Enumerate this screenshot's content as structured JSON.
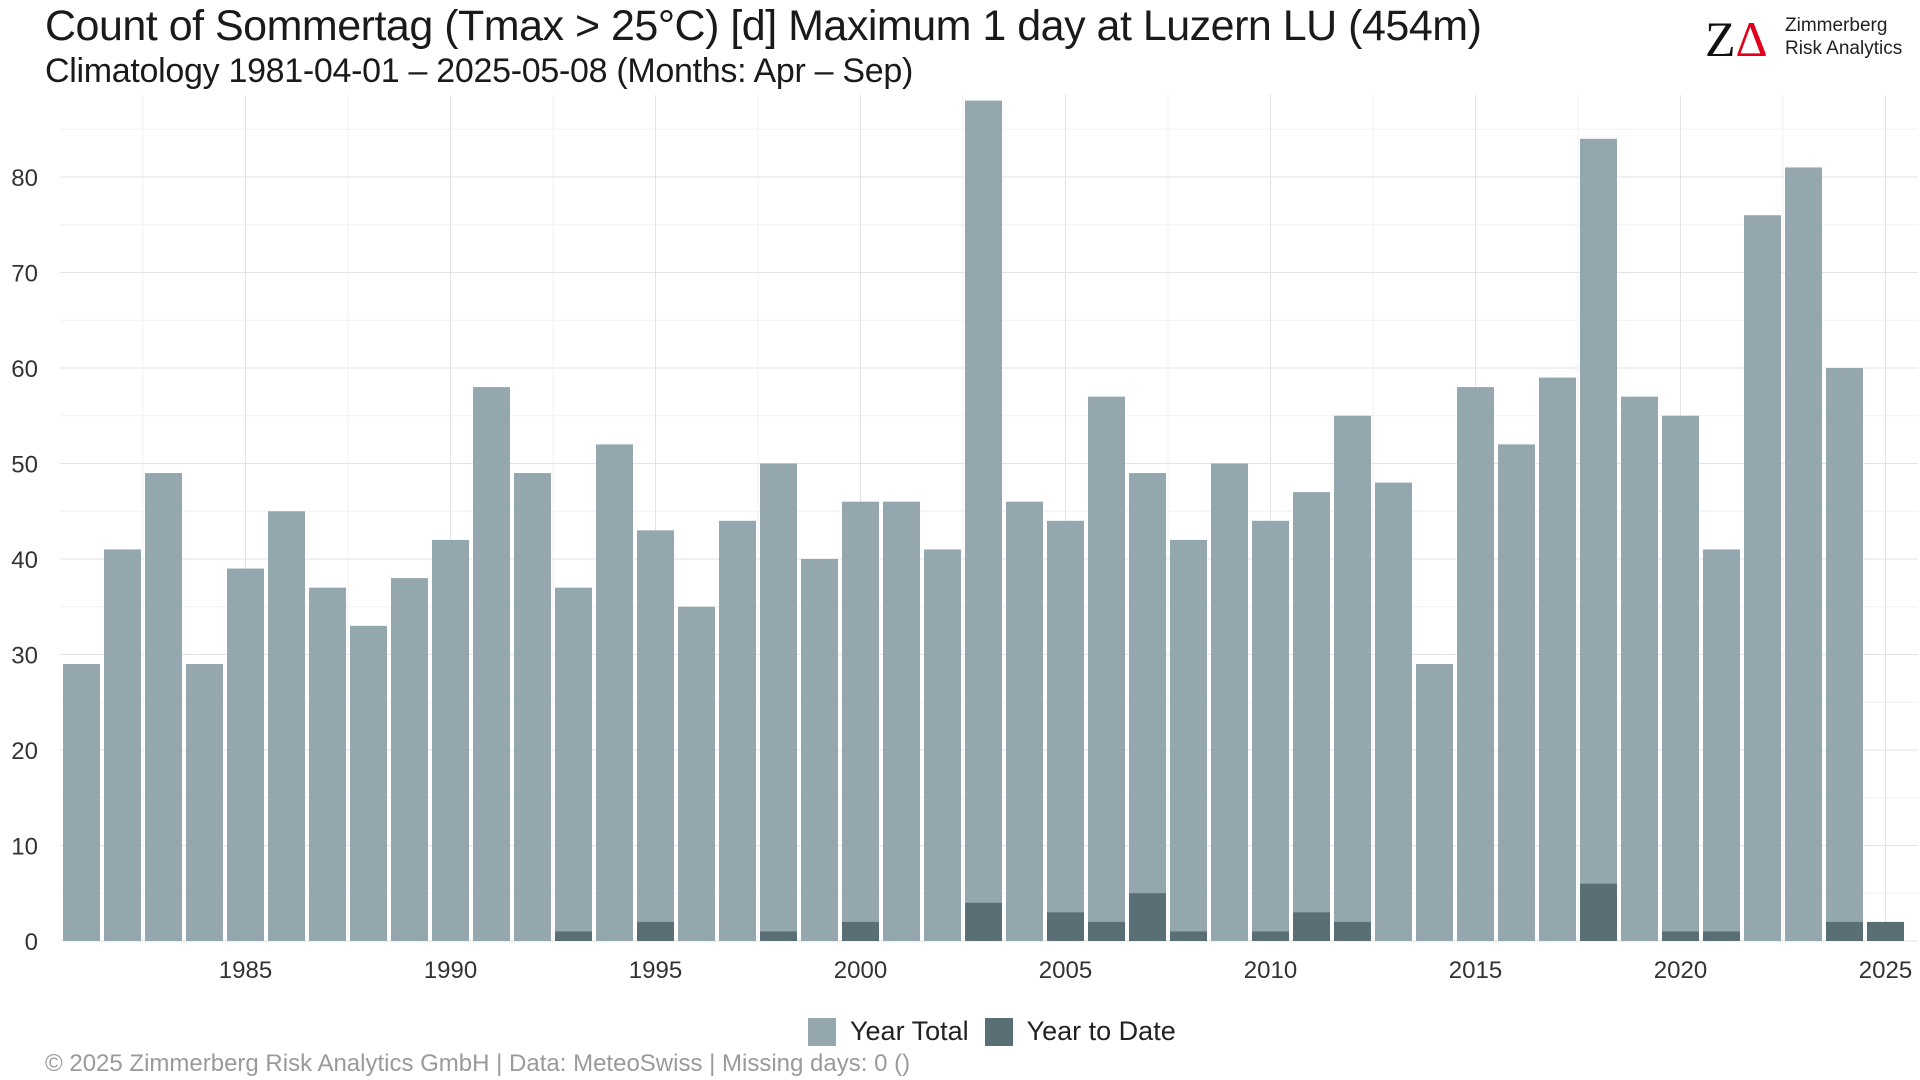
{
  "title": "Count of Sommertag (Tmax > 25°C) [d] Maximum 1 day at Luzern  LU (454m)",
  "subtitle": "Climatology 1981-04-01 – 2025-05-08 (Months: Apr – Sep)",
  "logo": {
    "mark": "ZΔ",
    "line1": "Zimmerberg",
    "line2": "Risk Analytics"
  },
  "footer": "©  2025 Zimmerberg Risk Analytics GmbH | Data: MeteoSwiss | Missing days: 0 ()",
  "colors": {
    "year_total": "#94a7ae",
    "year_to_date": "#5a6e75",
    "logo_red": "#e0001b"
  },
  "chart_data": {
    "type": "bar",
    "x": [
      1981,
      1982,
      1983,
      1984,
      1985,
      1986,
      1987,
      1988,
      1989,
      1990,
      1991,
      1992,
      1993,
      1994,
      1995,
      1996,
      1997,
      1998,
      1999,
      2000,
      2001,
      2002,
      2003,
      2004,
      2005,
      2006,
      2007,
      2008,
      2009,
      2010,
      2011,
      2012,
      2013,
      2014,
      2015,
      2016,
      2017,
      2018,
      2019,
      2020,
      2021,
      2022,
      2023,
      2024,
      2025
    ],
    "series": [
      {
        "name": "Year Total",
        "values": [
          29,
          41,
          49,
          29,
          39,
          45,
          37,
          33,
          38,
          42,
          58,
          49,
          37,
          52,
          43,
          35,
          44,
          50,
          40,
          46,
          46,
          41,
          88,
          46,
          44,
          57,
          49,
          42,
          50,
          44,
          47,
          55,
          48,
          29,
          58,
          52,
          59,
          84,
          57,
          55,
          41,
          76,
          81,
          60,
          null
        ]
      },
      {
        "name": "Year to Date",
        "values": [
          0,
          0,
          0,
          0,
          0,
          0,
          0,
          0,
          0,
          0,
          0,
          0,
          1,
          0,
          2,
          0,
          0,
          1,
          0,
          2,
          0,
          0,
          4,
          0,
          3,
          2,
          5,
          1,
          0,
          1,
          3,
          2,
          0,
          0,
          0,
          0,
          0,
          6,
          0,
          1,
          1,
          0,
          0,
          2,
          2
        ]
      }
    ],
    "xticks": [
      1985,
      1990,
      1995,
      2000,
      2005,
      2010,
      2015,
      2020,
      2025
    ],
    "yticks": [
      0,
      10,
      20,
      30,
      40,
      50,
      60,
      70,
      80
    ],
    "ylim": [
      0,
      88
    ],
    "xlabel": "",
    "ylabel": "",
    "grid": true,
    "legend": "bottom"
  }
}
